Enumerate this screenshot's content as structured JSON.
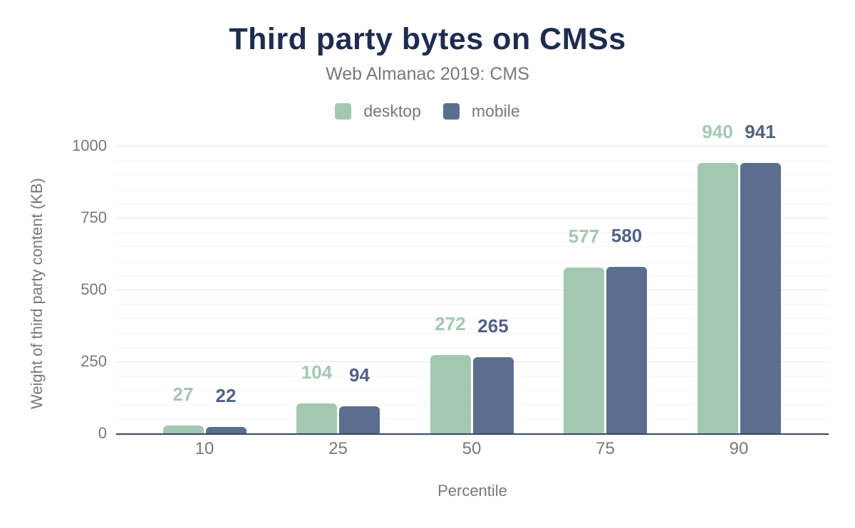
{
  "chart_data": {
    "type": "bar",
    "title": "Third party bytes on CMSs",
    "subtitle": "Web Almanac 2019: CMS",
    "categories": [
      "10",
      "25",
      "50",
      "75",
      "90"
    ],
    "series": [
      {
        "name": "desktop",
        "color": "#a2c8b2",
        "label_color": "#a2c8b2",
        "values": [
          27,
          104,
          272,
          577,
          940
        ]
      },
      {
        "name": "mobile",
        "color": "#5b6e8e",
        "label_color": "#506286",
        "values": [
          22,
          94,
          265,
          580,
          941
        ]
      }
    ],
    "xlabel": "Percentile",
    "ylabel": "Weight of third party content (KB)",
    "ylim": [
      0,
      1000
    ],
    "y_ticks": [
      0,
      250,
      500,
      750,
      1000
    ],
    "minor_grid_step": 50,
    "grid": "on",
    "legend_position": "top",
    "colors": {
      "title_text": "#1e2c50",
      "muted_text": "#787878",
      "axis_line": "#364763",
      "grid_major": "#e8e8e8",
      "grid_minor": "#f5f5f5",
      "background": "#ffffff"
    }
  }
}
